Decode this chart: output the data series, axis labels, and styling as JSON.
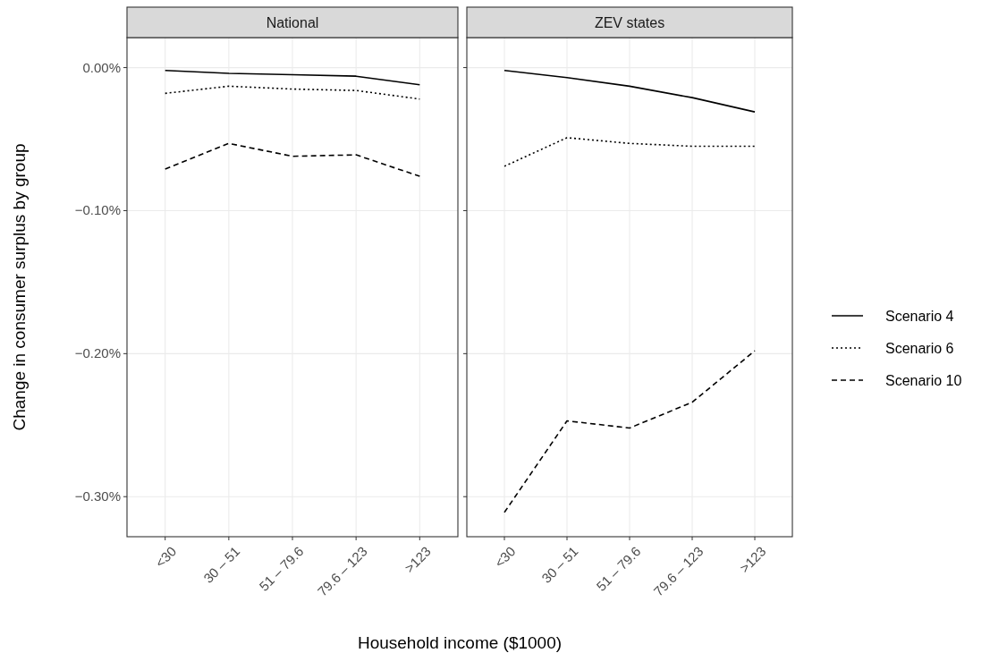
{
  "chart_data": [
    {
      "type": "line",
      "title": "National",
      "xlabel": "Household income ($1000)",
      "ylabel": "Change in consumer surplus by group",
      "categories": [
        "<30",
        "30 – 51",
        "51 – 79.6",
        "79.6 – 123",
        ">123"
      ],
      "ylim": [
        -0.328,
        0.021
      ],
      "yticks": [
        {
          "value": 0,
          "label": "0.00%"
        },
        {
          "value": -0.1,
          "label": "−0.10%"
        },
        {
          "value": -0.2,
          "label": "−0.20%"
        },
        {
          "value": -0.3,
          "label": "−0.30%"
        }
      ],
      "grid": true,
      "series": [
        {
          "color": "#000000",
          "line_style": "solid",
          "values": [
            -0.002,
            -0.004,
            -0.005,
            -0.006,
            -0.012
          ]
        },
        {
          "color": "#000000",
          "line_style": "dotted",
          "values": [
            -0.018,
            -0.013,
            -0.015,
            -0.016,
            -0.022
          ]
        },
        {
          "color": "#000000",
          "line_style": "dashed",
          "values": [
            -0.071,
            -0.053,
            -0.062,
            -0.061,
            -0.076
          ]
        }
      ]
    },
    {
      "type": "line",
      "title": "ZEV states",
      "categories": [
        "<30",
        "30 – 51",
        "51 – 79.6",
        "79.6 – 123",
        ">123"
      ],
      "ylim": [
        -0.328,
        0.021
      ],
      "yticks": [
        {
          "value": 0,
          "label": null
        },
        {
          "value": -0.1,
          "label": null
        },
        {
          "value": -0.2,
          "label": null
        },
        {
          "value": -0.3,
          "label": null
        }
      ],
      "tick_labels": "x",
      "grid": true,
      "legend": "right",
      "series": [
        {
          "name": "Scenario 4",
          "color": "#000000",
          "line_style": "solid",
          "values": [
            -0.002,
            -0.007,
            -0.013,
            -0.021,
            -0.031
          ]
        },
        {
          "name": "Scenario 6",
          "color": "#000000",
          "line_style": "dotted",
          "values": [
            -0.069,
            -0.049,
            -0.053,
            -0.055,
            -0.055
          ]
        },
        {
          "name": "Scenario 10",
          "color": "#000000",
          "line_style": "dashed",
          "values": [
            -0.311,
            -0.247,
            -0.252,
            -0.234,
            -0.198
          ]
        }
      ]
    }
  ]
}
